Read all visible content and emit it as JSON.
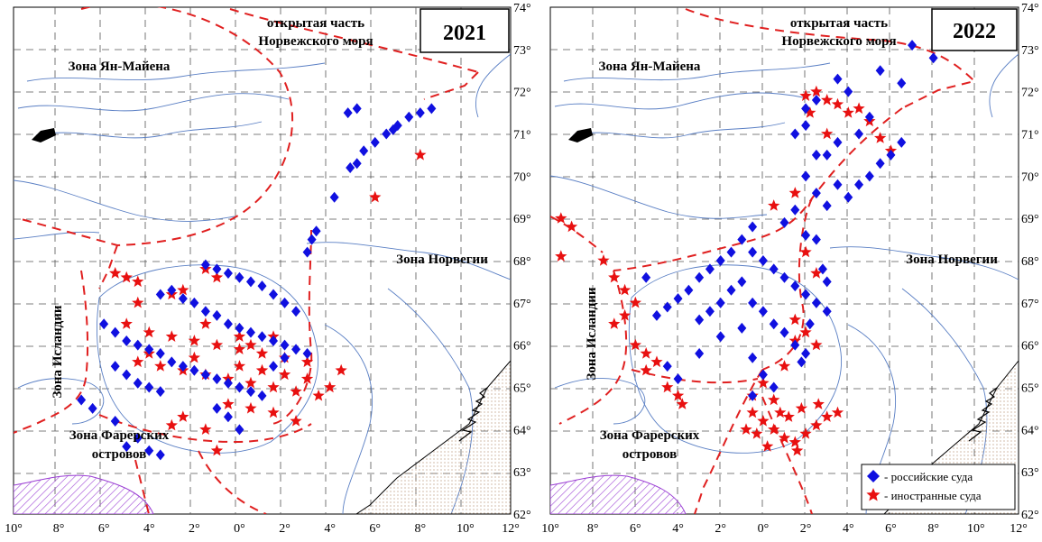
{
  "panels": [
    {
      "id": "left",
      "year": "2021",
      "zones": {
        "open_sea_line1": "открытая часть",
        "open_sea_line2": "Норвежского моря",
        "jan_mayen": "Зона Ян-Майена",
        "norway": "Зона Норвегии",
        "iceland": "Зона Исландии",
        "faroe_line1": "Зона Фарерских",
        "faroe_line2": "островов"
      },
      "lon_ticks": [
        "10°",
        "8°",
        "6°",
        "4°",
        "2°",
        "0°",
        "2°",
        "4°",
        "6°",
        "8°",
        "10°",
        "12°"
      ],
      "lat_ticks": [
        "74°",
        "73°",
        "72°",
        "71°",
        "70°",
        "69°",
        "68°",
        "67°",
        "66°",
        "65°",
        "64°",
        "63°",
        "62°"
      ],
      "russian_vessels": [
        [
          7.5,
          71.4
        ],
        [
          8.0,
          71.5
        ],
        [
          8.5,
          71.6
        ],
        [
          7.0,
          71.2
        ],
        [
          6.5,
          71.0
        ],
        [
          6.0,
          70.8
        ],
        [
          5.5,
          70.6
        ],
        [
          5.2,
          70.3
        ],
        [
          4.9,
          70.2
        ],
        [
          6.8,
          71.1
        ],
        [
          4.8,
          71.5
        ],
        [
          5.2,
          71.6
        ],
        [
          4.2,
          69.5
        ],
        [
          3.4,
          68.7
        ],
        [
          3.2,
          68.5
        ],
        [
          3.0,
          68.2
        ],
        [
          -1.5,
          67.9
        ],
        [
          -1.0,
          67.8
        ],
        [
          -0.5,
          67.7
        ],
        [
          0.0,
          67.6
        ],
        [
          0.5,
          67.5
        ],
        [
          1.0,
          67.4
        ],
        [
          1.5,
          67.2
        ],
        [
          2.0,
          67.0
        ],
        [
          2.5,
          66.8
        ],
        [
          -3.5,
          67.2
        ],
        [
          -3.0,
          67.3
        ],
        [
          -2.5,
          67.1
        ],
        [
          -2.0,
          67.0
        ],
        [
          -1.5,
          66.8
        ],
        [
          -1.0,
          66.7
        ],
        [
          -0.5,
          66.5
        ],
        [
          0.0,
          66.4
        ],
        [
          0.5,
          66.3
        ],
        [
          1.0,
          66.2
        ],
        [
          1.5,
          66.1
        ],
        [
          2.0,
          66.0
        ],
        [
          2.5,
          65.9
        ],
        [
          3.0,
          65.8
        ],
        [
          -6.0,
          66.5
        ],
        [
          -5.5,
          66.3
        ],
        [
          -5.0,
          66.1
        ],
        [
          -4.5,
          66.0
        ],
        [
          -4.0,
          65.9
        ],
        [
          -3.5,
          65.8
        ],
        [
          -3.0,
          65.6
        ],
        [
          -2.5,
          65.5
        ],
        [
          -2.0,
          65.4
        ],
        [
          -1.5,
          65.3
        ],
        [
          -1.0,
          65.2
        ],
        [
          -0.5,
          65.1
        ],
        [
          0.0,
          65.0
        ],
        [
          0.5,
          64.9
        ],
        [
          1.0,
          64.8
        ],
        [
          -5.5,
          65.5
        ],
        [
          -5.0,
          65.3
        ],
        [
          -4.5,
          65.1
        ],
        [
          -4.0,
          65.0
        ],
        [
          -3.5,
          64.9
        ],
        [
          -7.0,
          64.7
        ],
        [
          -6.5,
          64.5
        ],
        [
          -5.5,
          64.2
        ],
        [
          -4.5,
          63.8
        ],
        [
          -4.0,
          63.5
        ],
        [
          -3.5,
          63.4
        ],
        [
          -5.0,
          63.6
        ],
        [
          -0.5,
          64.3
        ],
        [
          0.0,
          64.0
        ],
        [
          -1.0,
          64.5
        ],
        [
          1.5,
          65.5
        ],
        [
          2.0,
          65.7
        ]
      ],
      "foreign_vessels": [
        [
          8.0,
          70.5
        ],
        [
          6.0,
          69.5
        ],
        [
          -5.5,
          67.7
        ],
        [
          -5.0,
          67.6
        ],
        [
          -4.5,
          67.5
        ],
        [
          -1.5,
          67.8
        ],
        [
          -1.0,
          67.6
        ],
        [
          -2.5,
          67.3
        ],
        [
          -3.0,
          67.2
        ],
        [
          -4.5,
          67.0
        ],
        [
          -5.0,
          66.5
        ],
        [
          -4.0,
          66.3
        ],
        [
          -3.0,
          66.2
        ],
        [
          -2.0,
          66.1
        ],
        [
          -1.0,
          66.0
        ],
        [
          0.0,
          65.9
        ],
        [
          1.0,
          65.8
        ],
        [
          2.0,
          65.7
        ],
        [
          3.0,
          65.6
        ],
        [
          -4.5,
          65.6
        ],
        [
          -3.5,
          65.5
        ],
        [
          -2.5,
          65.4
        ],
        [
          -1.5,
          65.3
        ],
        [
          -0.5,
          65.2
        ],
        [
          0.5,
          65.1
        ],
        [
          1.5,
          65.0
        ],
        [
          2.5,
          64.9
        ],
        [
          3.5,
          64.8
        ],
        [
          -4.0,
          65.8
        ],
        [
          -2.0,
          65.7
        ],
        [
          0.0,
          65.5
        ],
        [
          1.0,
          65.4
        ],
        [
          2.0,
          65.3
        ],
        [
          3.0,
          65.2
        ],
        [
          4.0,
          65.0
        ],
        [
          4.5,
          65.4
        ],
        [
          -0.5,
          64.6
        ],
        [
          0.5,
          64.5
        ],
        [
          1.5,
          64.4
        ],
        [
          2.5,
          64.2
        ],
        [
          -1.5,
          64.0
        ],
        [
          -1.0,
          63.5
        ],
        [
          -3.0,
          64.1
        ],
        [
          -2.5,
          64.3
        ],
        [
          0.0,
          66.2
        ],
        [
          0.5,
          66.0
        ],
        [
          1.5,
          66.2
        ],
        [
          -1.5,
          66.5
        ]
      ]
    },
    {
      "id": "right",
      "year": "2022",
      "zones": {
        "open_sea_line1": "открытая часть",
        "open_sea_line2": "Норвежского моря",
        "jan_mayen": "Зона Ян-Майена",
        "norway": "Зона Норвегии",
        "iceland": "Зона Исландии",
        "faroe_line1": "Зона Фарерских",
        "faroe_line2": "островов"
      },
      "lon_ticks": [
        "10°",
        "8°",
        "6°",
        "4°",
        "2°",
        "0°",
        "2°",
        "4°",
        "6°",
        "8°",
        "10°",
        "12°"
      ],
      "lat_ticks": [
        "74°",
        "73°",
        "72°",
        "71°",
        "70°",
        "69°",
        "68°",
        "67°",
        "66°",
        "65°",
        "64°",
        "63°",
        "62°"
      ],
      "legend": {
        "russian": "- российские суда",
        "foreign": "- иностранные суда"
      },
      "russian_vessels": [
        [
          7.0,
          73.1
        ],
        [
          8.0,
          72.8
        ],
        [
          5.5,
          72.5
        ],
        [
          6.5,
          72.2
        ],
        [
          3.5,
          72.3
        ],
        [
          4.0,
          72.0
        ],
        [
          2.5,
          71.8
        ],
        [
          2.0,
          71.6
        ],
        [
          5.0,
          71.4
        ],
        [
          4.5,
          71.0
        ],
        [
          3.5,
          70.8
        ],
        [
          3.0,
          70.5
        ],
        [
          2.0,
          71.2
        ],
        [
          1.5,
          71.0
        ],
        [
          2.5,
          70.5
        ],
        [
          2.0,
          70.0
        ],
        [
          2.5,
          69.6
        ],
        [
          1.5,
          69.2
        ],
        [
          1.0,
          68.9
        ],
        [
          2.0,
          68.6
        ],
        [
          3.0,
          69.3
        ],
        [
          3.5,
          69.8
        ],
        [
          -0.5,
          68.8
        ],
        [
          -1.0,
          68.5
        ],
        [
          -1.5,
          68.2
        ],
        [
          -2.0,
          68.0
        ],
        [
          -2.5,
          67.8
        ],
        [
          -3.0,
          67.6
        ],
        [
          -3.5,
          67.3
        ],
        [
          -4.0,
          67.1
        ],
        [
          -4.5,
          66.9
        ],
        [
          -5.0,
          66.7
        ],
        [
          -0.5,
          68.2
        ],
        [
          0.0,
          68.0
        ],
        [
          0.5,
          67.8
        ],
        [
          1.0,
          67.6
        ],
        [
          1.5,
          67.4
        ],
        [
          2.0,
          67.2
        ],
        [
          2.5,
          67.0
        ],
        [
          3.0,
          66.8
        ],
        [
          3.0,
          67.5
        ],
        [
          -1.0,
          67.5
        ],
        [
          -1.5,
          67.3
        ],
        [
          -2.0,
          67.0
        ],
        [
          -2.5,
          66.8
        ],
        [
          -3.0,
          66.6
        ],
        [
          -0.5,
          67.0
        ],
        [
          0.0,
          66.8
        ],
        [
          0.5,
          66.5
        ],
        [
          1.0,
          66.3
        ],
        [
          1.5,
          66.0
        ],
        [
          2.0,
          65.8
        ],
        [
          -4.5,
          65.5
        ],
        [
          -4.0,
          65.2
        ],
        [
          -3.0,
          65.8
        ],
        [
          -2.0,
          66.2
        ],
        [
          -1.0,
          66.4
        ],
        [
          -0.5,
          65.7
        ],
        [
          0.0,
          65.3
        ],
        [
          0.5,
          65.0
        ],
        [
          -0.5,
          64.8
        ],
        [
          6.5,
          70.8
        ],
        [
          6.0,
          70.5
        ],
        [
          5.5,
          70.3
        ],
        [
          5.0,
          70.0
        ],
        [
          4.5,
          69.8
        ],
        [
          4.0,
          69.5
        ],
        [
          2.5,
          68.5
        ],
        [
          2.8,
          67.8
        ],
        [
          2.2,
          66.5
        ],
        [
          1.8,
          65.6
        ],
        [
          -5.5,
          67.6
        ]
      ],
      "foreign_vessels": [
        [
          2.0,
          71.9
        ],
        [
          2.5,
          72.0
        ],
        [
          3.0,
          71.8
        ],
        [
          3.5,
          71.7
        ],
        [
          4.0,
          71.5
        ],
        [
          4.5,
          71.6
        ],
        [
          5.0,
          71.3
        ],
        [
          3.0,
          71.0
        ],
        [
          2.2,
          71.5
        ],
        [
          5.5,
          70.9
        ],
        [
          6.0,
          70.6
        ],
        [
          0.5,
          69.3
        ],
        [
          1.5,
          69.6
        ],
        [
          2.0,
          68.2
        ],
        [
          2.5,
          67.7
        ],
        [
          -9.5,
          69.0
        ],
        [
          -9.0,
          68.8
        ],
        [
          -9.5,
          68.1
        ],
        [
          -7.5,
          68.0
        ],
        [
          -7.0,
          67.6
        ],
        [
          -6.5,
          67.3
        ],
        [
          -6.0,
          67.0
        ],
        [
          -6.5,
          66.7
        ],
        [
          -7.0,
          66.5
        ],
        [
          -6.0,
          66.0
        ],
        [
          -5.5,
          65.8
        ],
        [
          -5.0,
          65.6
        ],
        [
          -5.5,
          65.4
        ],
        [
          -4.5,
          65.0
        ],
        [
          -4.0,
          64.8
        ],
        [
          -3.8,
          64.6
        ],
        [
          1.5,
          66.6
        ],
        [
          2.0,
          66.3
        ],
        [
          1.5,
          66.1
        ],
        [
          2.5,
          66.0
        ],
        [
          1.0,
          65.5
        ],
        [
          0.0,
          65.1
        ],
        [
          -0.5,
          64.8
        ],
        [
          0.5,
          64.7
        ],
        [
          -0.5,
          64.4
        ],
        [
          0.0,
          64.2
        ],
        [
          0.5,
          64.0
        ],
        [
          1.0,
          63.8
        ],
        [
          1.5,
          63.7
        ],
        [
          2.0,
          63.9
        ],
        [
          2.5,
          64.1
        ],
        [
          3.0,
          64.3
        ],
        [
          3.5,
          64.4
        ],
        [
          -0.8,
          64.0
        ],
        [
          0.2,
          63.6
        ],
        [
          1.2,
          64.3
        ],
        [
          1.8,
          64.5
        ],
        [
          2.6,
          64.6
        ],
        [
          0.8,
          64.4
        ],
        [
          -0.3,
          63.9
        ],
        [
          1.6,
          63.5
        ]
      ]
    }
  ]
}
